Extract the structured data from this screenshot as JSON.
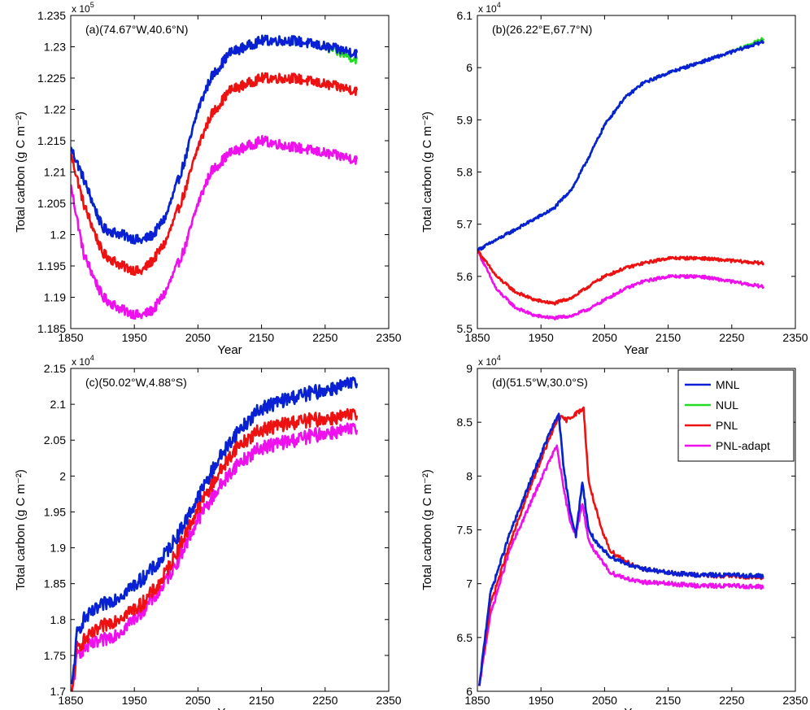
{
  "figure": {
    "colors": {
      "MNL": "#0a1fd6",
      "NUL": "#22dd22",
      "PNL": "#ee1111",
      "PNL-adapt": "#ee11ee"
    }
  },
  "chart_data": [
    {
      "type": "line",
      "panel_label": "(a)(74.67°W,40.6°N)",
      "xlabel": "Year",
      "ylabel": "Total carbon (g C m⁻²)",
      "exponent_label": "x 10",
      "exponent_power": "5",
      "xlim": [
        1850,
        2350
      ],
      "ylim": [
        1.185,
        1.235
      ],
      "xticks": [
        1850,
        1950,
        2050,
        2150,
        2250,
        2350
      ],
      "yticks": [
        1.185,
        1.19,
        1.195,
        1.2,
        1.205,
        1.21,
        1.215,
        1.22,
        1.225,
        1.23,
        1.235
      ],
      "ytick_labels": [
        "1.185",
        "1.19",
        "1.195",
        "1.2",
        "1.205",
        "1.21",
        "1.215",
        "1.22",
        "1.225",
        "1.23",
        "1.235"
      ],
      "x": [
        1850,
        1870,
        1900,
        1930,
        1960,
        1980,
        2000,
        2030,
        2050,
        2070,
        2100,
        2150,
        2200,
        2250,
        2300
      ],
      "noise": 0.0008,
      "series": [
        {
          "name": "MNL",
          "values": [
            1.214,
            1.209,
            1.201,
            1.2,
            1.199,
            1.2,
            1.203,
            1.212,
            1.22,
            1.225,
            1.229,
            1.231,
            1.231,
            1.23,
            1.229
          ]
        },
        {
          "name": "NUL",
          "values": [
            1.214,
            1.209,
            1.201,
            1.2,
            1.199,
            1.2,
            1.203,
            1.212,
            1.22,
            1.225,
            1.229,
            1.231,
            1.231,
            1.23,
            1.228
          ]
        },
        {
          "name": "PNL",
          "values": [
            1.213,
            1.205,
            1.197,
            1.195,
            1.194,
            1.196,
            1.199,
            1.207,
            1.214,
            1.219,
            1.223,
            1.225,
            1.225,
            1.224,
            1.223
          ]
        },
        {
          "name": "PNL-adapt",
          "values": [
            1.208,
            1.197,
            1.19,
            1.188,
            1.187,
            1.188,
            1.191,
            1.198,
            1.205,
            1.21,
            1.213,
            1.215,
            1.214,
            1.213,
            1.212
          ]
        }
      ]
    },
    {
      "type": "line",
      "panel_label": "(b)(26.22°E,67.7°N)",
      "xlabel": "Year",
      "ylabel": "Total carbon (g C m⁻²)",
      "exponent_label": "x 10",
      "exponent_power": "4",
      "xlim": [
        1850,
        2350
      ],
      "ylim": [
        5.5,
        6.1
      ],
      "xticks": [
        1850,
        1950,
        2050,
        2150,
        2250,
        2350
      ],
      "yticks": [
        5.5,
        5.6,
        5.7,
        5.8,
        5.9,
        6.0,
        6.1
      ],
      "ytick_labels": [
        "5.5",
        "5.6",
        "5.7",
        "5.8",
        "5.9",
        "6",
        "6.1"
      ],
      "x": [
        1850,
        1880,
        1910,
        1940,
        1970,
        2000,
        2030,
        2050,
        2080,
        2110,
        2150,
        2200,
        2250,
        2300
      ],
      "noise": 0.003,
      "series": [
        {
          "name": "MNL",
          "values": [
            5.65,
            5.67,
            5.69,
            5.71,
            5.73,
            5.77,
            5.84,
            5.89,
            5.94,
            5.97,
            5.99,
            6.01,
            6.03,
            6.05
          ]
        },
        {
          "name": "NUL",
          "values": [
            5.65,
            5.67,
            5.69,
            5.71,
            5.73,
            5.77,
            5.84,
            5.89,
            5.94,
            5.97,
            5.99,
            6.01,
            6.03,
            6.055
          ]
        },
        {
          "name": "PNL",
          "values": [
            5.65,
            5.6,
            5.57,
            5.555,
            5.548,
            5.56,
            5.585,
            5.6,
            5.615,
            5.625,
            5.635,
            5.635,
            5.63,
            5.625
          ]
        },
        {
          "name": "PNL-adapt",
          "values": [
            5.65,
            5.575,
            5.54,
            5.525,
            5.52,
            5.525,
            5.54,
            5.555,
            5.575,
            5.59,
            5.6,
            5.6,
            5.59,
            5.58
          ]
        }
      ]
    },
    {
      "type": "line",
      "panel_label": "(c)(50.02°W,4.88°S)",
      "xlabel": "Year",
      "ylabel": "Total carbon (g C m⁻²)",
      "exponent_label": "x 10",
      "exponent_power": "4",
      "xlim": [
        1850,
        2350
      ],
      "ylim": [
        1.7,
        2.15
      ],
      "xticks": [
        1850,
        1950,
        2050,
        2150,
        2250,
        2350
      ],
      "yticks": [
        1.7,
        1.75,
        1.8,
        1.85,
        1.9,
        1.95,
        2.0,
        2.05,
        2.1,
        2.15
      ],
      "ytick_labels": [
        "1.7",
        "1.75",
        "1.8",
        "1.85",
        "1.9",
        "1.95",
        "2",
        "2.05",
        "2.1",
        "2.15"
      ],
      "x": [
        1852,
        1860,
        1870,
        1900,
        1930,
        1960,
        1990,
        2020,
        2050,
        2080,
        2110,
        2150,
        2200,
        2250,
        2300
      ],
      "noise": 0.01,
      "series": [
        {
          "name": "MNL",
          "values": [
            1.71,
            1.78,
            1.8,
            1.82,
            1.835,
            1.855,
            1.88,
            1.92,
            1.97,
            2.02,
            2.06,
            2.095,
            2.11,
            2.12,
            2.13
          ]
        },
        {
          "name": "NUL",
          "values": [
            1.71,
            1.78,
            1.8,
            1.82,
            1.835,
            1.855,
            1.88,
            1.92,
            1.97,
            2.02,
            2.06,
            2.095,
            2.11,
            2.12,
            2.13
          ]
        },
        {
          "name": "PNL",
          "values": [
            1.7,
            1.76,
            1.77,
            1.79,
            1.805,
            1.82,
            1.85,
            1.9,
            1.955,
            2.0,
            2.04,
            2.065,
            2.075,
            2.08,
            2.085
          ]
        },
        {
          "name": "PNL-adapt",
          "values": [
            1.7,
            1.75,
            1.76,
            1.77,
            1.785,
            1.81,
            1.84,
            1.885,
            1.94,
            1.98,
            2.015,
            2.04,
            2.05,
            2.06,
            2.065
          ]
        }
      ]
    },
    {
      "type": "line",
      "panel_label": "(d)(51.5°W,30.0°S)",
      "xlabel": "Year",
      "ylabel": "Total carbon (g C m⁻²)",
      "exponent_label": "x 10",
      "exponent_power": "4",
      "xlim": [
        1850,
        2350
      ],
      "ylim": [
        6,
        9
      ],
      "xticks": [
        1850,
        1950,
        2050,
        2150,
        2250,
        2350
      ],
      "yticks": [
        6,
        6.5,
        7,
        7.5,
        8,
        8.5,
        9
      ],
      "ytick_labels": [
        "6",
        "6.5",
        "7",
        "7.5",
        "8",
        "8.5",
        "9"
      ],
      "legend": {
        "position": "top-right",
        "entries": [
          "MNL",
          "NUL",
          "PNL",
          "PNL-adapt"
        ]
      },
      "noise": 0.02,
      "series": [
        {
          "name": "MNL",
          "x": [
            1853,
            1870,
            1900,
            1930,
            1960,
            1978,
            1985,
            1995,
            2005,
            2015,
            2025,
            2040,
            2060,
            2100,
            2150,
            2200,
            2250,
            2300
          ],
          "values": [
            6.05,
            6.9,
            7.45,
            7.9,
            8.35,
            8.58,
            8.1,
            7.7,
            7.45,
            7.95,
            7.5,
            7.35,
            7.25,
            7.15,
            7.1,
            7.08,
            7.08,
            7.07
          ]
        },
        {
          "name": "NUL",
          "x": [
            1853,
            1870,
            1900,
            1930,
            1960,
            1978,
            1985,
            1995,
            2005,
            2015,
            2025,
            2040,
            2060,
            2100,
            2150,
            2200,
            2250,
            2300
          ],
          "values": [
            6.05,
            6.9,
            7.45,
            7.9,
            8.35,
            8.57,
            8.1,
            7.7,
            7.45,
            7.94,
            7.5,
            7.35,
            7.25,
            7.15,
            7.1,
            7.08,
            7.08,
            7.07
          ]
        },
        {
          "name": "PNL",
          "x": [
            1853,
            1870,
            1900,
            1930,
            1960,
            1978,
            1990,
            2000,
            2010,
            2017,
            2025,
            2045,
            2060,
            2100,
            2150,
            2200,
            2250,
            2300
          ],
          "values": [
            6.05,
            6.8,
            7.35,
            7.85,
            8.3,
            8.55,
            8.52,
            8.56,
            8.6,
            8.63,
            7.95,
            7.5,
            7.3,
            7.15,
            7.1,
            7.08,
            7.07,
            7.06
          ]
        },
        {
          "name": "PNL-adapt",
          "x": [
            1853,
            1870,
            1900,
            1930,
            1960,
            1975,
            1985,
            1995,
            2005,
            2015,
            2025,
            2040,
            2060,
            2100,
            2150,
            2200,
            2250,
            2300
          ],
          "values": [
            6.05,
            6.7,
            7.3,
            7.7,
            8.1,
            8.28,
            7.9,
            7.6,
            7.45,
            7.75,
            7.4,
            7.25,
            7.1,
            7.02,
            7.0,
            6.98,
            6.98,
            6.97
          ]
        }
      ]
    }
  ]
}
